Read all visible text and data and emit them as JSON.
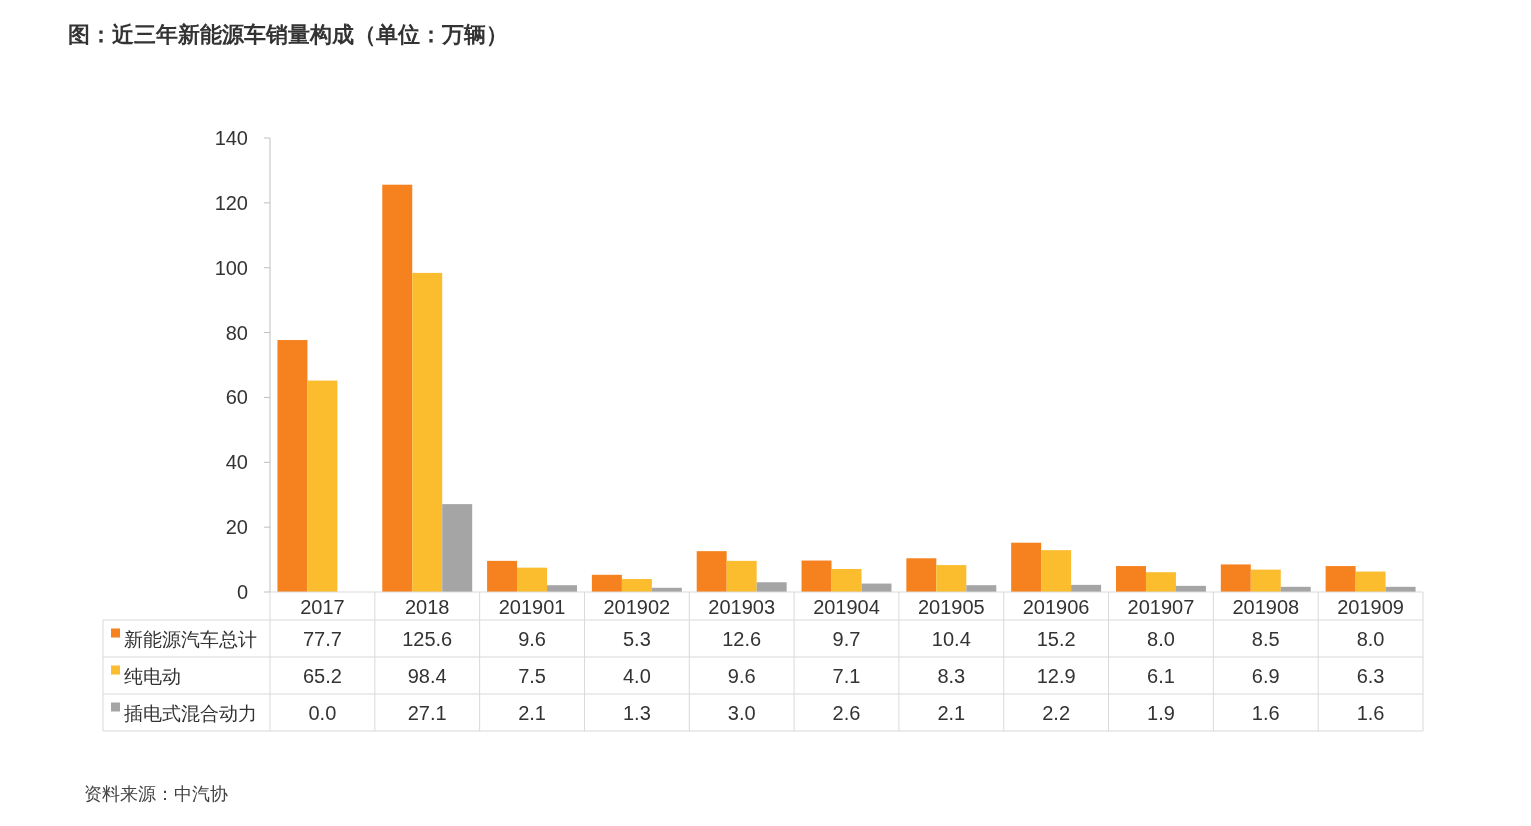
{
  "chart_data": {
    "type": "bar",
    "title": "图：近三年新能源车销量构成（单位：万辆）",
    "categories": [
      "2017",
      "2018",
      "201901",
      "201902",
      "201903",
      "201904",
      "201905",
      "201906",
      "201907",
      "201908",
      "201909"
    ],
    "series": [
      {
        "name": "新能源汽车总计",
        "color": "#f5821f",
        "values": [
          77.7,
          125.6,
          9.6,
          5.3,
          12.6,
          9.7,
          10.4,
          15.2,
          8.0,
          8.5,
          8.0
        ],
        "value_labels": [
          "77.7",
          "125.6",
          "9.6",
          "5.3",
          "12.6",
          "9.7",
          "10.4",
          "15.2",
          "8.0",
          "8.5",
          "8.0"
        ]
      },
      {
        "name": "纯电动",
        "color": "#fbbc2e",
        "values": [
          65.2,
          98.4,
          7.5,
          4.0,
          9.6,
          7.1,
          8.3,
          12.9,
          6.1,
          6.9,
          6.3
        ],
        "value_labels": [
          "65.2",
          "98.4",
          "7.5",
          "4.0",
          "9.6",
          "7.1",
          "8.3",
          "12.9",
          "6.1",
          "6.9",
          "6.3"
        ]
      },
      {
        "name": "插电式混合动力",
        "color": "#a5a5a5",
        "values": [
          0.0,
          27.1,
          2.1,
          1.3,
          3.0,
          2.6,
          2.1,
          2.2,
          1.9,
          1.6,
          1.6
        ],
        "value_labels": [
          "0.0",
          "27.1",
          "2.1",
          "1.3",
          "3.0",
          "2.6",
          "2.1",
          "2.2",
          "1.9",
          "1.6",
          "1.6"
        ]
      }
    ],
    "ylim": [
      0,
      140
    ],
    "yticks": [
      0,
      20,
      40,
      60,
      80,
      100,
      120,
      140
    ],
    "legend": "bottom",
    "annotations": [
      "资料来源：中汽协"
    ]
  }
}
